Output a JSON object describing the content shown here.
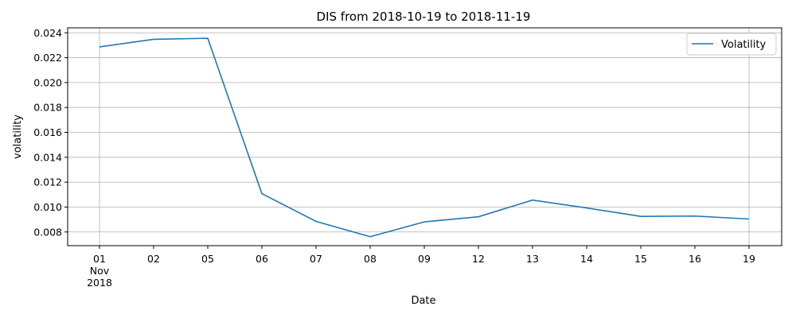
{
  "chart_data": {
    "type": "line",
    "title": "DIS from 2018-10-19 to 2018-11-19",
    "xlabel": "Date",
    "ylabel": "volatility",
    "x": [
      "2018-11-01",
      "2018-11-02",
      "2018-11-05",
      "2018-11-06",
      "2018-11-07",
      "2018-11-08",
      "2018-11-09",
      "2018-11-12",
      "2018-11-13",
      "2018-11-14",
      "2018-11-15",
      "2018-11-16",
      "2018-11-19"
    ],
    "x_tick_labels": [
      [
        "01",
        "Nov",
        "2018"
      ],
      [
        "02"
      ],
      [
        "05"
      ],
      [
        "06"
      ],
      [
        "07"
      ],
      [
        "08"
      ],
      [
        "09"
      ],
      [
        "12"
      ],
      [
        "13"
      ],
      [
        "14"
      ],
      [
        "15"
      ],
      [
        "16"
      ],
      [
        "19"
      ]
    ],
    "series": [
      {
        "name": "Volatility",
        "color": "#1f77b4",
        "values": [
          0.02287,
          0.02348,
          0.02356,
          0.01108,
          0.00885,
          0.00762,
          0.00881,
          0.00922,
          0.01056,
          0.00993,
          0.00925,
          0.00928,
          0.00904
        ]
      }
    ],
    "ylim": [
      0.0069,
      0.0244
    ],
    "y_ticks": [
      "0.008",
      "0.010",
      "0.012",
      "0.014",
      "0.016",
      "0.018",
      "0.020",
      "0.022",
      "0.024"
    ],
    "grid": true,
    "grid_x_ticks": [
      "01",
      "19"
    ],
    "legend_placement": "top-right"
  }
}
